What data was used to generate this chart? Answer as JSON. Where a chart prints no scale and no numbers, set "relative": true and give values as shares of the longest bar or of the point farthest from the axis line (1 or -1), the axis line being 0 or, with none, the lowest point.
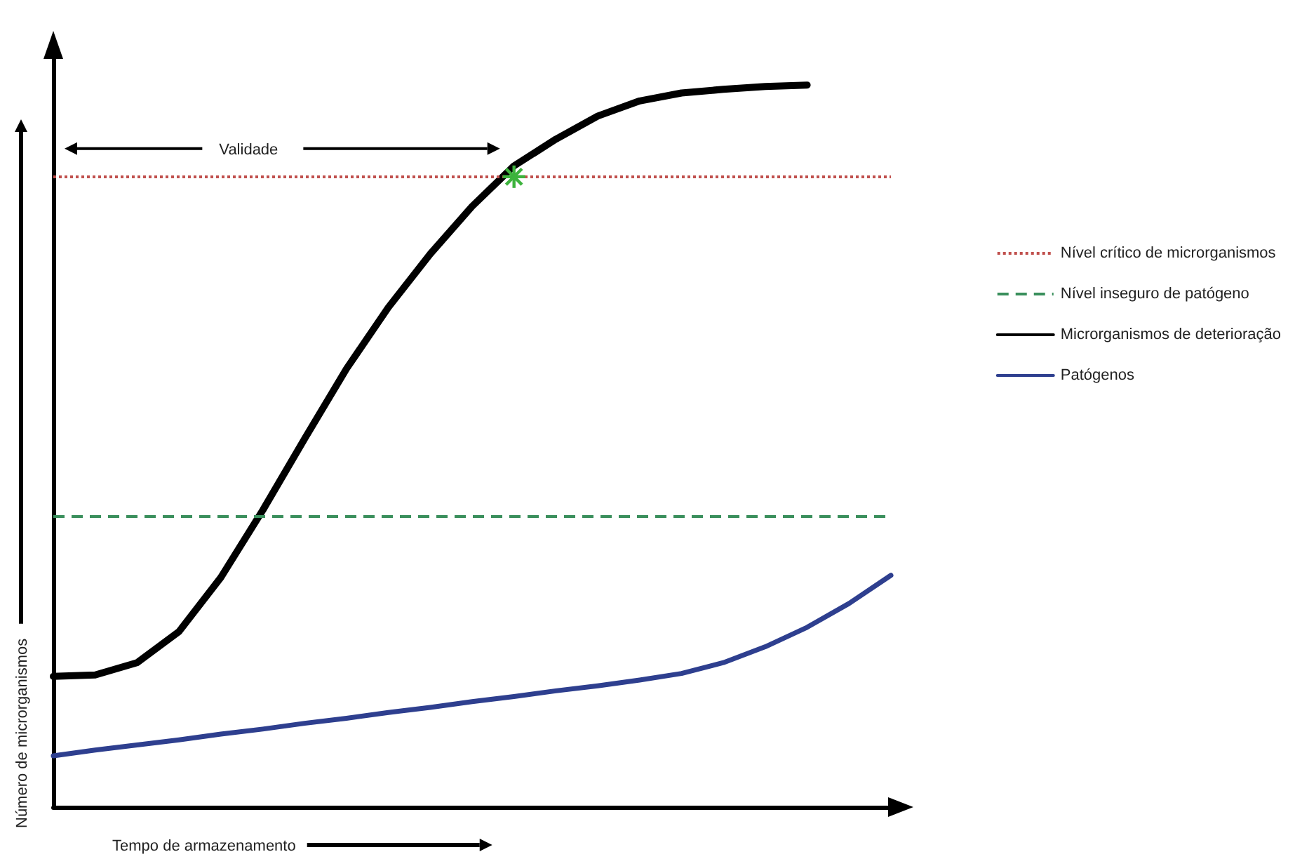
{
  "chart_data": {
    "type": "line",
    "relative": true,
    "tick_labels": false,
    "legend": "right",
    "marker": "none",
    "xlabel": "Tempo de armazenamento",
    "ylabel": "Número de microrganismos",
    "annotations": [
      "Validade"
    ],
    "categories": [
      null,
      null,
      null,
      null,
      null,
      null,
      null,
      null,
      null,
      null,
      null,
      null,
      null,
      null,
      null,
      null,
      null,
      null,
      null,
      null,
      null
    ],
    "series": [
      {
        "name": "Microrganismos de deterioração",
        "color": "#000000",
        "values": [
          0.181,
          0.183,
          0.2,
          0.243,
          0.318,
          0.411,
          0.51,
          0.607,
          0.692,
          0.766,
          0.832,
          0.888,
          0.925,
          0.957,
          0.978,
          0.989,
          0.994,
          0.998,
          1.0,
          null,
          null
        ]
      },
      {
        "name": "Patógenos",
        "color": "#2e3f8f",
        "values": [
          0.071,
          0.079,
          0.086,
          0.093,
          0.101,
          0.108,
          0.116,
          0.123,
          0.131,
          0.138,
          0.146,
          0.153,
          0.161,
          0.168,
          0.176,
          0.185,
          0.2,
          0.222,
          0.249,
          0.282,
          0.321
        ]
      }
    ],
    "ref_lines": [
      {
        "axis": "y",
        "value": 0.873,
        "label": "Nível crítico de microrganismos",
        "color": "#c0504d",
        "line_style": "dotted"
      },
      {
        "axis": "y",
        "value": 0.402,
        "label": "Nível inseguro de patógeno",
        "color": "#3a8f5c",
        "line_style": "dashed"
      }
    ]
  }
}
